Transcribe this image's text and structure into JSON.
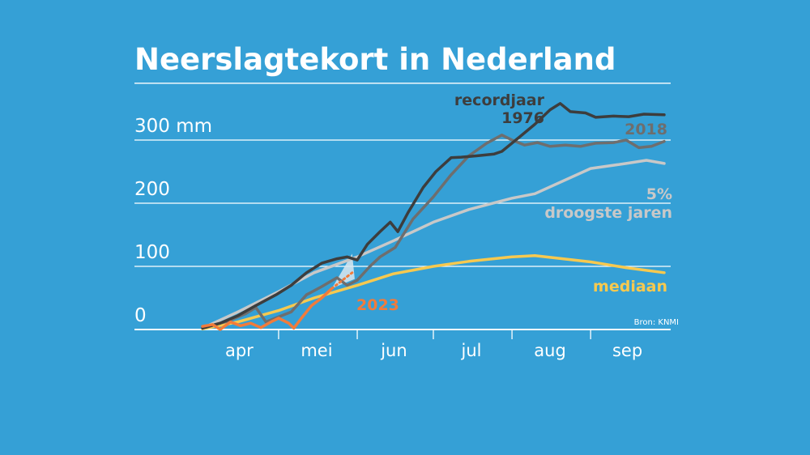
{
  "chart_data": {
    "type": "line",
    "title": "Neerslagtekort in Nederland",
    "y_unit": "mm",
    "ylim": [
      0,
      390
    ],
    "y_ticks": [
      {
        "value": 0,
        "label": "0"
      },
      {
        "value": 100,
        "label": "100"
      },
      {
        "value": 200,
        "label": "200"
      },
      {
        "value": 300,
        "label": "300 mm"
      }
    ],
    "x_start": "04-01",
    "x_end": "09-30",
    "months": [
      {
        "label": "apr",
        "start": "04-01",
        "end": "04-30"
      },
      {
        "label": "mei",
        "start": "05-01",
        "end": "05-31"
      },
      {
        "label": "jun",
        "start": "06-01",
        "end": "06-30"
      },
      {
        "label": "jul",
        "start": "07-01",
        "end": "07-31"
      },
      {
        "label": "aug",
        "start": "08-01",
        "end": "08-31"
      },
      {
        "label": "sep",
        "start": "09-01",
        "end": "09-30"
      }
    ],
    "grid": true,
    "source": "Bron: KNMI",
    "series": [
      {
        "name": "recordjaar 1976",
        "label_lines": [
          "recordjaar",
          "1976"
        ],
        "color": "#3d3d3d",
        "points": [
          [
            "04-01",
            2
          ],
          [
            "04-08",
            10
          ],
          [
            "04-15",
            22
          ],
          [
            "04-22",
            38
          ],
          [
            "04-30",
            55
          ],
          [
            "05-06",
            70
          ],
          [
            "05-12",
            90
          ],
          [
            "05-18",
            105
          ],
          [
            "05-24",
            112
          ],
          [
            "05-28",
            115
          ],
          [
            "06-01",
            110
          ],
          [
            "06-05",
            135
          ],
          [
            "06-10",
            155
          ],
          [
            "06-14",
            170
          ],
          [
            "06-17",
            155
          ],
          [
            "06-21",
            185
          ],
          [
            "06-27",
            225
          ],
          [
            "07-02",
            250
          ],
          [
            "07-08",
            272
          ],
          [
            "07-12",
            273
          ],
          [
            "07-18",
            275
          ],
          [
            "07-25",
            278
          ],
          [
            "07-28",
            282
          ],
          [
            "08-04",
            305
          ],
          [
            "08-10",
            325
          ],
          [
            "08-16",
            348
          ],
          [
            "08-20",
            358
          ],
          [
            "08-24",
            345
          ],
          [
            "08-30",
            343
          ],
          [
            "09-03",
            336
          ],
          [
            "09-10",
            338
          ],
          [
            "09-16",
            337
          ],
          [
            "09-22",
            341
          ],
          [
            "09-30",
            340
          ]
        ]
      },
      {
        "name": "2018",
        "label_lines": [
          "2018"
        ],
        "color": "#6e6e6e",
        "points": [
          [
            "04-01",
            3
          ],
          [
            "04-10",
            12
          ],
          [
            "04-18",
            25
          ],
          [
            "04-22",
            35
          ],
          [
            "04-26",
            12
          ],
          [
            "05-01",
            20
          ],
          [
            "05-06",
            28
          ],
          [
            "05-12",
            55
          ],
          [
            "05-18",
            68
          ],
          [
            "05-24",
            82
          ],
          [
            "05-28",
            70
          ],
          [
            "06-01",
            78
          ],
          [
            "06-06",
            100
          ],
          [
            "06-10",
            115
          ],
          [
            "06-16",
            130
          ],
          [
            "06-23",
            175
          ],
          [
            "07-01",
            210
          ],
          [
            "07-08",
            245
          ],
          [
            "07-15",
            275
          ],
          [
            "07-22",
            295
          ],
          [
            "07-28",
            308
          ],
          [
            "08-01",
            300
          ],
          [
            "08-06",
            292
          ],
          [
            "08-11",
            296
          ],
          [
            "08-16",
            290
          ],
          [
            "08-22",
            292
          ],
          [
            "08-28",
            290
          ],
          [
            "09-03",
            295
          ],
          [
            "09-10",
            296
          ],
          [
            "09-15",
            300
          ],
          [
            "09-20",
            288
          ],
          [
            "09-25",
            290
          ],
          [
            "09-30",
            298
          ]
        ]
      },
      {
        "name": "5% droogste jaren",
        "label_lines": [
          "5%",
          "droogste jaren"
        ],
        "color": "#c8c8c8",
        "points": [
          [
            "04-01",
            2
          ],
          [
            "04-15",
            28
          ],
          [
            "05-01",
            60
          ],
          [
            "05-15",
            90
          ],
          [
            "06-01",
            115
          ],
          [
            "06-15",
            140
          ],
          [
            "07-01",
            170
          ],
          [
            "07-15",
            190
          ],
          [
            "08-01",
            208
          ],
          [
            "08-10",
            215
          ],
          [
            "09-01",
            255
          ],
          [
            "09-15",
            263
          ],
          [
            "09-23",
            268
          ],
          [
            "09-30",
            263
          ]
        ]
      },
      {
        "name": "mediaan",
        "label_lines": [
          "mediaan"
        ],
        "color": "#f7c94f",
        "points": [
          [
            "04-01",
            1
          ],
          [
            "04-15",
            12
          ],
          [
            "05-01",
            30
          ],
          [
            "05-15",
            50
          ],
          [
            "06-01",
            70
          ],
          [
            "06-15",
            88
          ],
          [
            "07-01",
            100
          ],
          [
            "07-15",
            108
          ],
          [
            "08-01",
            115
          ],
          [
            "08-10",
            117
          ],
          [
            "09-01",
            107
          ],
          [
            "09-15",
            98
          ],
          [
            "09-30",
            90
          ]
        ]
      },
      {
        "name": "2023",
        "label_lines": [
          "2023"
        ],
        "color": "#f27b3a",
        "points": [
          [
            "04-01",
            5
          ],
          [
            "04-05",
            8
          ],
          [
            "04-08",
            0
          ],
          [
            "04-12",
            12
          ],
          [
            "04-16",
            6
          ],
          [
            "04-20",
            10
          ],
          [
            "04-24",
            3
          ],
          [
            "04-28",
            12
          ],
          [
            "05-01",
            18
          ],
          [
            "05-05",
            10
          ],
          [
            "05-07",
            2
          ],
          [
            "05-10",
            18
          ],
          [
            "05-14",
            38
          ],
          [
            "05-18",
            50
          ],
          [
            "05-22",
            65
          ]
        ]
      }
    ],
    "forecast_2023": {
      "points": [
        [
          "05-22",
          65
        ],
        [
          "05-30",
          90
        ]
      ],
      "band": [
        [
          "05-22",
          65
        ],
        [
          "05-30",
          120
        ],
        [
          "05-31",
          80
        ]
      ]
    }
  }
}
